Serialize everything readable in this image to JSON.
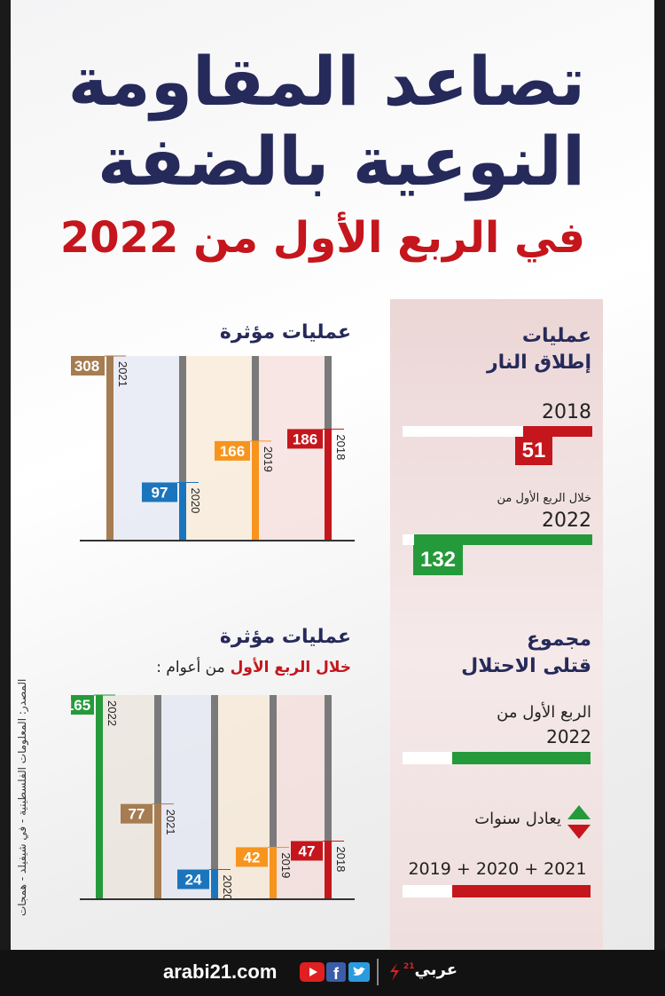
{
  "title": {
    "line1": "تصاعد المقاومة",
    "line2": "النوعية بالضفة",
    "subtitle": "في الربع الأول من 2022"
  },
  "colors": {
    "navy": "#262a5a",
    "red": "#c4161c",
    "brown": "#a67c52",
    "blue": "#1b75bc",
    "orange": "#f7941d",
    "green": "#259a3b",
    "gray": "#7a7a7a"
  },
  "fire_ops": {
    "title_line1": "عمليات",
    "title_line2": "إطلاق النار",
    "rows": [
      {
        "label": "2018",
        "prefix": "",
        "value": 51,
        "display": "51"
      },
      {
        "label": "2022",
        "prefix": "خلال الربع الأول من",
        "value": 132,
        "display": "132"
      }
    ]
  },
  "killed": {
    "title_line1": "مجموع",
    "title_line2": "قتلى الاحتلال",
    "q1_line1": "الربع الأول من",
    "q1_line2": "2022",
    "equals_label": "يعادل سنوات",
    "years_sum": "2019 + 2020 + 2021"
  },
  "chart_data": [
    {
      "type": "bar",
      "title": "عمليات مؤثرة",
      "categories": [
        "2018",
        "2019",
        "2020",
        "2021"
      ],
      "values": [
        186,
        166,
        97,
        308
      ],
      "labels": [
        "186",
        "166",
        "97",
        "308"
      ],
      "ylim": [
        0,
        308
      ]
    },
    {
      "type": "bar",
      "title": "عمليات مؤثرة",
      "subtitle_highlight": "خلال الربع الأول",
      "subtitle_rest": "من أعوام :",
      "categories": [
        "2018",
        "2019",
        "2020",
        "2021",
        "2022"
      ],
      "values": [
        47,
        42,
        24,
        77,
        165
      ],
      "labels": [
        "47",
        "42",
        "24",
        "77",
        "165"
      ],
      "ylim": [
        0,
        165
      ]
    }
  ],
  "source": "المصدر: المعلومات الفلسطينية - في شيفيلد - همجات",
  "footer": {
    "url": "arabi21.com",
    "brand": "عربي",
    "brand_num": "21",
    "icons": [
      "youtube-icon",
      "facebook-icon",
      "twitter-icon"
    ]
  }
}
